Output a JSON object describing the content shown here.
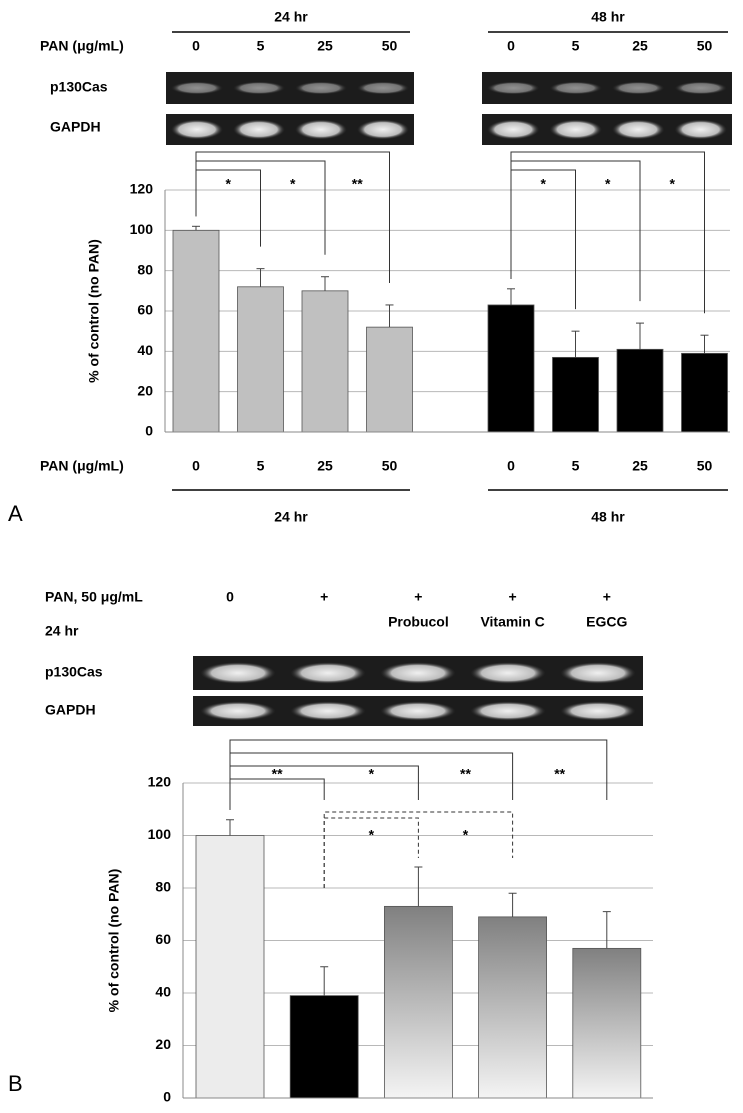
{
  "chart_data": [
    {
      "type": "bar",
      "panel": "A",
      "x_label": "PAN (μg/mL)",
      "y_label": "% of control (no PAN)",
      "blot_rows": [
        "p130Cas",
        "GAPDH"
      ],
      "categories": [
        "0",
        "5",
        "25",
        "50"
      ],
      "series": [
        {
          "name": "24 hr",
          "color": "#c0c0c0",
          "values": [
            100,
            72,
            70,
            52
          ],
          "errors": [
            2,
            9,
            7,
            11
          ],
          "significance": [
            {
              "from": 0,
              "to": 1,
              "label": "*"
            },
            {
              "from": 0,
              "to": 2,
              "label": "*"
            },
            {
              "from": 0,
              "to": 3,
              "label": "**"
            }
          ]
        },
        {
          "name": "48 hr",
          "color": "#000000",
          "values": [
            63,
            37,
            41,
            39
          ],
          "errors": [
            8,
            13,
            13,
            9
          ],
          "significance": [
            {
              "from": 0,
              "to": 1,
              "label": "*"
            },
            {
              "from": 0,
              "to": 2,
              "label": "*"
            },
            {
              "from": 0,
              "to": 3,
              "label": "*"
            }
          ]
        }
      ],
      "ylim": [
        0,
        120
      ],
      "yticks": [
        0,
        20,
        40,
        60,
        80,
        100,
        120
      ],
      "grid": true
    },
    {
      "type": "bar",
      "panel": "B",
      "header": "PAN, 50 μg/mL",
      "time": "24 hr",
      "y_label": "% of control (no PAN)",
      "blot_rows": [
        "p130Cas",
        "GAPDH"
      ],
      "categories": [
        "0",
        "+",
        "+",
        "+",
        "+"
      ],
      "treatments": [
        null,
        null,
        "Probucol",
        "Vitamin C",
        "EGCG"
      ],
      "values": [
        100,
        39,
        73,
        69,
        57
      ],
      "errors": [
        6,
        11,
        15,
        9,
        14
      ],
      "colors": [
        "#ececec",
        "#000000",
        "#808080",
        "#808080",
        "#808080"
      ],
      "gradient": [
        false,
        false,
        true,
        true,
        true
      ],
      "significance": [
        {
          "from": 0,
          "to": 1,
          "label": "**",
          "dashed": false
        },
        {
          "from": 0,
          "to": 2,
          "label": "*",
          "dashed": false
        },
        {
          "from": 0,
          "to": 3,
          "label": "**",
          "dashed": false
        },
        {
          "from": 0,
          "to": 4,
          "label": "**",
          "dashed": false
        },
        {
          "from": 1,
          "to": 2,
          "label": "*",
          "dashed": true
        },
        {
          "from": 1,
          "to": 3,
          "label": "*",
          "dashed": true
        }
      ],
      "ylim": [
        0,
        120
      ],
      "yticks": [
        0,
        20,
        40,
        60,
        80,
        100,
        120
      ],
      "grid": true
    }
  ]
}
